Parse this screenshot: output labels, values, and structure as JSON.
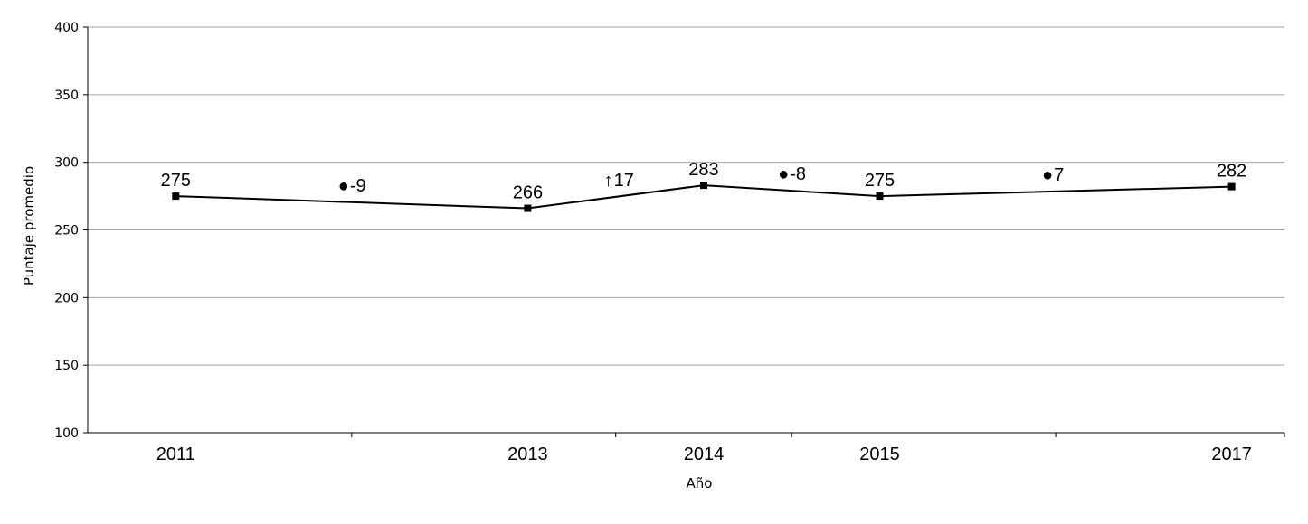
{
  "chart_data": {
    "type": "line",
    "xlabel": "Año",
    "ylabel": "Puntaje promedio",
    "ylim": [
      100,
      400
    ],
    "yticks": [
      "100",
      "150",
      "200",
      "250",
      "300",
      "350",
      "400"
    ],
    "xticks": [
      "2011",
      "2013",
      "2014",
      "2015",
      "2017"
    ],
    "grid": true,
    "series": [
      {
        "points": [
          {
            "x": 2011,
            "y": 275,
            "label": "275"
          },
          {
            "x": 2013,
            "y": 266,
            "label": "266"
          },
          {
            "x": 2014,
            "y": 283,
            "label": "283"
          },
          {
            "x": 2015,
            "y": 275,
            "label": "275"
          },
          {
            "x": 2017,
            "y": 282,
            "label": "282"
          }
        ],
        "color": "#000000",
        "marker": "square"
      }
    ],
    "changes": [
      {
        "between": [
          2011,
          2013
        ],
        "symbol": "●",
        "value": "-9"
      },
      {
        "between": [
          2013,
          2014
        ],
        "symbol": "↑",
        "value": "17"
      },
      {
        "between": [
          2014,
          2015
        ],
        "symbol": "●",
        "value": "-8"
      },
      {
        "between": [
          2015,
          2017
        ],
        "symbol": "●",
        "value": "7"
      }
    ],
    "gridline_color": "#a6a6a6"
  }
}
